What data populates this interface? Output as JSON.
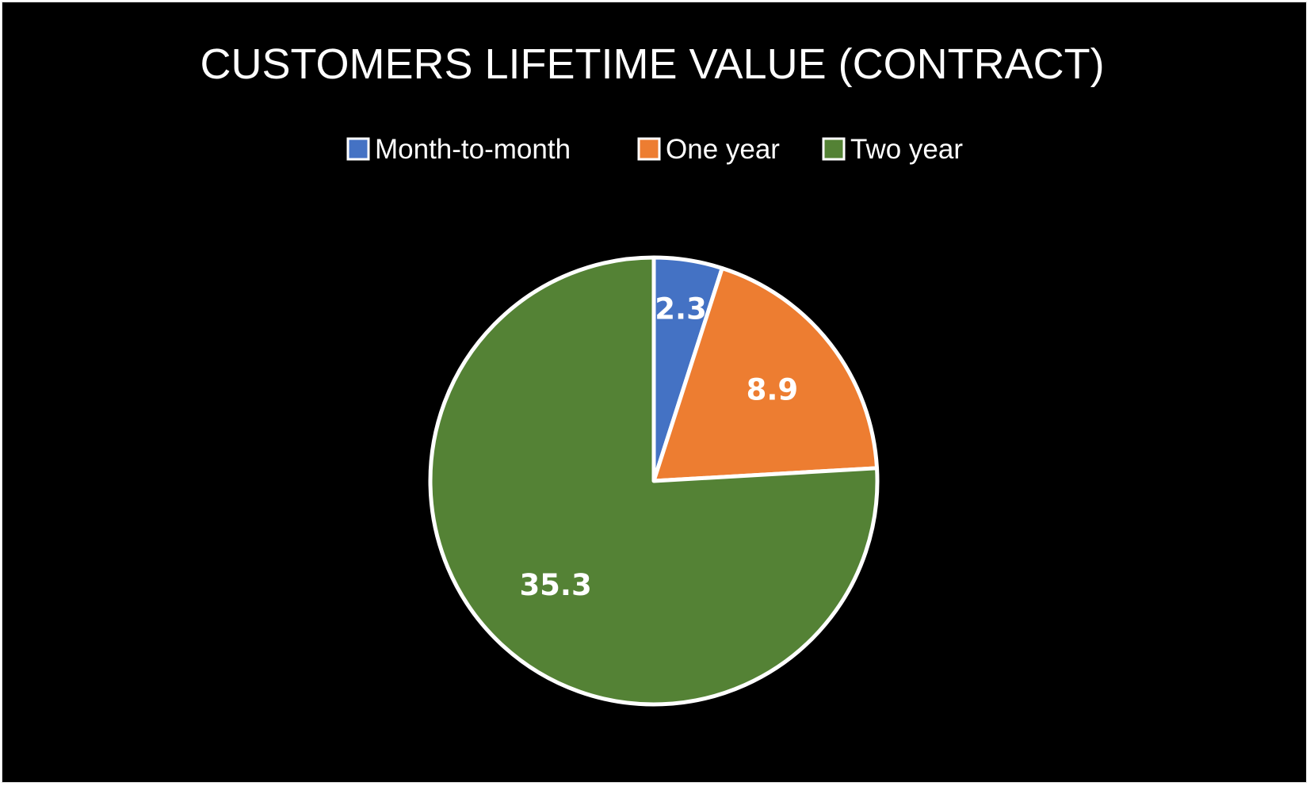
{
  "chart_data": {
    "type": "pie",
    "title": "CUSTOMERS LIFETIME VALUE (CONTRACT)",
    "categories": [
      "Month-to-month",
      "One year",
      "Two year"
    ],
    "values": [
      2.3,
      8.9,
      35.3
    ],
    "data_labels": [
      "2.3",
      "8.9",
      "35.3"
    ],
    "colors": [
      "#4472C4",
      "#ED7D31",
      "#548235"
    ],
    "legend": {
      "placement": "top",
      "entries": [
        "Month-to-month",
        "One year",
        "Two year"
      ]
    },
    "background": "#000000",
    "slice_border_color": "#ffffff",
    "start_angle_deg": 0,
    "direction": "clockwise"
  }
}
